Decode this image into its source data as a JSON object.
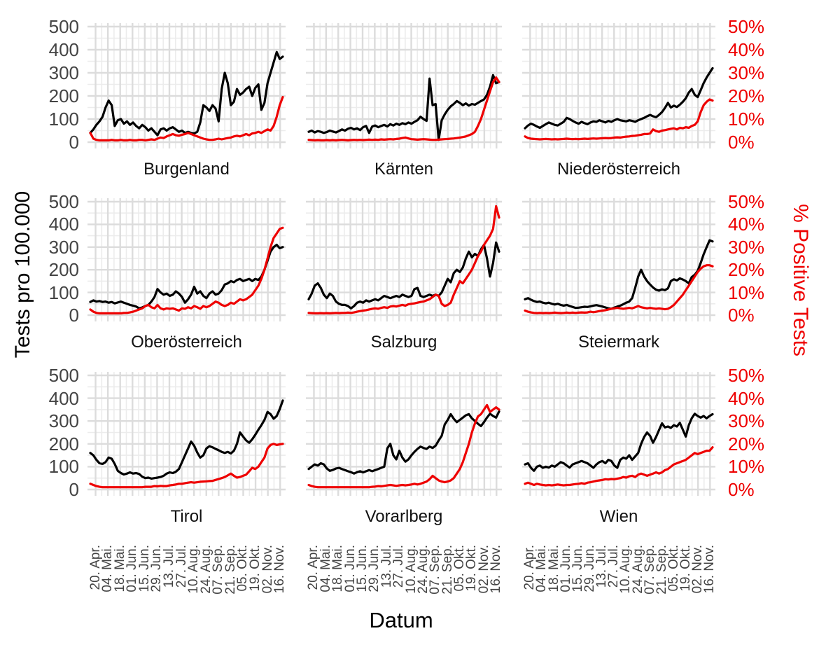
{
  "figure": {
    "y_left_title": "Tests pro 100.000",
    "y_right_title": "% Positive Tests",
    "x_title": "Datum",
    "colors": {
      "tests_line": "#000000",
      "positive_line": "#ee0000",
      "axis_text": "#444444",
      "facet_title_text": "#111111",
      "grid_major": "#dcdcdc",
      "grid_minor": "#ececec",
      "background": "#ffffff"
    }
  },
  "chart_data": {
    "type": "line",
    "title": "",
    "grid": true,
    "x_axis": {
      "title": "Datum",
      "tick_labels": [
        "20. Apr.",
        "04. Mai.",
        "18. Mai.",
        "01. Jun.",
        "15. Jun.",
        "29. Jun.",
        "13. Jul.",
        "27. Jul.",
        "10. Aug.",
        "24. Aug.",
        "07. Sep.",
        "21. Sep.",
        "05. Okt.",
        "19. Okt.",
        "02. Nov.",
        "16. Nov."
      ],
      "tick_interval_days": 14,
      "total_days": 219,
      "first_tick_day": 6
    },
    "y_left": {
      "title": "Tests pro 100.000",
      "ticks": [
        0,
        100,
        200,
        300,
        400,
        500
      ],
      "range": [
        0,
        500
      ]
    },
    "y_right": {
      "title": "% Positive Tests",
      "tick_labels": [
        "0%",
        "10%",
        "20%",
        "30%",
        "40%",
        "50%"
      ],
      "range_pct": [
        0,
        50
      ]
    },
    "series_legend": [
      {
        "name": "Tests pro 100.000",
        "color": "#000000",
        "axis": "left"
      },
      {
        "name": "% Positive Tests",
        "color": "#ee0000",
        "axis": "right"
      }
    ],
    "facets": [
      {
        "name": "Burgenland",
        "tests_per_100k": [
          40,
          55,
          75,
          90,
          110,
          150,
          180,
          160,
          70,
          95,
          100,
          80,
          90,
          75,
          85,
          70,
          60,
          75,
          65,
          50,
          60,
          45,
          30,
          55,
          60,
          50,
          60,
          65,
          55,
          45,
          50,
          40,
          45,
          40,
          38,
          45,
          85,
          160,
          150,
          135,
          160,
          145,
          90,
          230,
          300,
          255,
          160,
          175,
          230,
          205,
          215,
          230,
          240,
          200,
          235,
          250,
          140,
          170,
          255,
          300,
          345,
          390,
          360,
          370
        ],
        "positive_pct": [
          4,
          1.5,
          1,
          0.8,
          0.8,
          0.8,
          0.8,
          1,
          0.8,
          0.8,
          1,
          0.8,
          0.8,
          1,
          0.8,
          0.8,
          1,
          1,
          0.8,
          1,
          1.2,
          1,
          1.5,
          2,
          1.8,
          2.5,
          3,
          3.5,
          3,
          2.8,
          3.2,
          3.5,
          4,
          3.5,
          3,
          2.5,
          2,
          1.5,
          1.2,
          1,
          1,
          1.2,
          1.5,
          1.2,
          1.5,
          1.8,
          2,
          2.5,
          2.8,
          2.5,
          3,
          3.5,
          3,
          3.8,
          4,
          4.5,
          4,
          4.8,
          5.5,
          5,
          7,
          11,
          16,
          19.5
        ]
      },
      {
        "name": "Kärnten",
        "tests_per_100k": [
          45,
          50,
          42,
          48,
          45,
          40,
          44,
          50,
          46,
          42,
          48,
          55,
          50,
          58,
          62,
          55,
          60,
          52,
          65,
          70,
          40,
          68,
          72,
          65,
          70,
          75,
          68,
          78,
          72,
          80,
          75,
          82,
          78,
          85,
          80,
          88,
          95,
          110,
          100,
          92,
          275,
          160,
          165,
          10,
          95,
          120,
          140,
          155,
          165,
          178,
          170,
          160,
          168,
          158,
          165,
          162,
          170,
          178,
          185,
          205,
          240,
          290,
          255,
          260
        ],
        "positive_pct": [
          1,
          0.9,
          0.8,
          0.9,
          0.8,
          0.8,
          0.9,
          0.8,
          0.9,
          0.8,
          0.9,
          1,
          0.9,
          0.8,
          0.9,
          1,
          0.9,
          1,
          0.9,
          1,
          1.1,
          1,
          1.1,
          1,
          1.2,
          1.1,
          1.2,
          1.3,
          1.2,
          1.4,
          1.5,
          1.8,
          2,
          1.6,
          1.3,
          1.2,
          1.1,
          1.2,
          1.3,
          1.2,
          1.1,
          1,
          1,
          1.1,
          1.2,
          1.3,
          1.4,
          1.5,
          1.6,
          1.8,
          2,
          2.2,
          2.5,
          3,
          3.5,
          4.5,
          7,
          10,
          14,
          18,
          22,
          26,
          28,
          26
        ]
      },
      {
        "name": "Niederösterreich",
        "tests_per_100k": [
          60,
          72,
          80,
          75,
          68,
          62,
          70,
          78,
          85,
          80,
          75,
          72,
          80,
          88,
          105,
          100,
          92,
          85,
          80,
          88,
          82,
          78,
          85,
          90,
          88,
          95,
          90,
          85,
          92,
          88,
          95,
          100,
          95,
          92,
          90,
          95,
          92,
          88,
          95,
          100,
          105,
          112,
          118,
          112,
          108,
          118,
          130,
          148,
          170,
          150,
          158,
          152,
          162,
          175,
          190,
          215,
          230,
          205,
          195,
          225,
          255,
          280,
          300,
          320
        ],
        "positive_pct": [
          2.5,
          1.8,
          1.5,
          1.4,
          1.3,
          1.2,
          1.3,
          1.4,
          1.3,
          1.2,
          1.3,
          1.2,
          1.3,
          1.4,
          1.5,
          1.4,
          1.3,
          1.4,
          1.3,
          1.4,
          1.5,
          1.4,
          1.5,
          1.6,
          1.5,
          1.6,
          1.7,
          1.8,
          1.7,
          1.8,
          2,
          2.1,
          2,
          2.2,
          2.4,
          2.5,
          2.7,
          2.8,
          3,
          3.2,
          3.5,
          3.5,
          3.8,
          5.5,
          4.8,
          4.5,
          5,
          5.2,
          5.5,
          5.8,
          6,
          5.5,
          6.2,
          6,
          6.5,
          6.2,
          7,
          7.5,
          9,
          13,
          16,
          17.5,
          18.5,
          18
        ]
      },
      {
        "name": "Oberösterreich",
        "tests_per_100k": [
          58,
          65,
          60,
          62,
          58,
          60,
          55,
          58,
          52,
          56,
          60,
          55,
          50,
          45,
          42,
          38,
          30,
          34,
          40,
          45,
          60,
          80,
          115,
          100,
          90,
          95,
          85,
          90,
          105,
          95,
          80,
          55,
          70,
          90,
          125,
          95,
          105,
          85,
          75,
          95,
          105,
          90,
          95,
          110,
          135,
          140,
          150,
          145,
          155,
          160,
          150,
          155,
          160,
          150,
          160,
          155,
          170,
          200,
          240,
          280,
          300,
          310,
          295,
          300
        ],
        "positive_pct": [
          2.5,
          1.5,
          1,
          0.8,
          0.8,
          0.8,
          0.8,
          0.8,
          0.8,
          0.8,
          0.8,
          1,
          1,
          1.2,
          1.5,
          2,
          2.5,
          3,
          4,
          4.5,
          3.5,
          3,
          4.5,
          3,
          2.5,
          3,
          2.8,
          3,
          2.5,
          2,
          3,
          2.8,
          3.5,
          3,
          4,
          3.5,
          2.8,
          4,
          3.5,
          4,
          5,
          6,
          5.5,
          4.5,
          4,
          4.5,
          5.5,
          5,
          6,
          7,
          6.5,
          7,
          8,
          9,
          11,
          13,
          16,
          20,
          25,
          30,
          34,
          36,
          38,
          38.5
        ]
      },
      {
        "name": "Salzburg",
        "tests_per_100k": [
          70,
          95,
          130,
          140,
          120,
          90,
          75,
          95,
          85,
          60,
          50,
          45,
          45,
          40,
          30,
          40,
          55,
          60,
          55,
          65,
          60,
          65,
          70,
          65,
          75,
          85,
          80,
          75,
          80,
          85,
          80,
          90,
          85,
          80,
          85,
          115,
          120,
          85,
          80,
          85,
          90,
          85,
          90,
          85,
          100,
          130,
          160,
          145,
          185,
          200,
          190,
          210,
          250,
          280,
          255,
          270,
          260,
          290,
          310,
          250,
          170,
          230,
          320,
          280
        ],
        "positive_pct": [
          1,
          0.9,
          0.8,
          0.8,
          0.9,
          0.8,
          0.9,
          0.8,
          0.9,
          1,
          0.9,
          1,
          1,
          1.1,
          1,
          1.2,
          1.5,
          1.8,
          2,
          2.2,
          2.5,
          2.8,
          3,
          2.8,
          3.2,
          3.5,
          3.2,
          3.8,
          4,
          3.8,
          4.2,
          4.5,
          4.2,
          4.8,
          5,
          5.2,
          5.5,
          5.8,
          6,
          6.5,
          7,
          8,
          9,
          8.5,
          5,
          4,
          4.5,
          5.5,
          9,
          12,
          15,
          14,
          16,
          18,
          20,
          23,
          26,
          28,
          31,
          33,
          35,
          38,
          48,
          43
        ]
      },
      {
        "name": "Steiermark",
        "tests_per_100k": [
          70,
          75,
          68,
          62,
          58,
          60,
          55,
          52,
          55,
          50,
          47,
          50,
          45,
          42,
          45,
          40,
          36,
          32,
          33,
          35,
          37,
          36,
          39,
          42,
          44,
          41,
          38,
          34,
          30,
          28,
          33,
          38,
          42,
          48,
          55,
          60,
          75,
          120,
          170,
          200,
          170,
          150,
          135,
          122,
          112,
          108,
          114,
          110,
          118,
          150,
          158,
          153,
          162,
          157,
          150,
          140,
          168,
          178,
          195,
          230,
          268,
          300,
          330,
          325
        ],
        "positive_pct": [
          2,
          1.5,
          1.2,
          1,
          0.9,
          1,
          0.9,
          1,
          0.9,
          1,
          1.1,
          1,
          0.9,
          1,
          1.1,
          1,
          1.1,
          1,
          1.1,
          1.2,
          1.1,
          1.2,
          1.5,
          1.3,
          1.5,
          1.8,
          2,
          2.2,
          2.5,
          2.8,
          3,
          3.2,
          3,
          2.8,
          3,
          3.2,
          3,
          3.5,
          4,
          3.5,
          3.2,
          3,
          3.2,
          3,
          2.8,
          3,
          2.8,
          2.6,
          2.8,
          3.5,
          4.5,
          6,
          7.5,
          9,
          11,
          13,
          15,
          17,
          19,
          20.5,
          21.5,
          22,
          22,
          21.5
        ]
      },
      {
        "name": "Tirol",
        "tests_per_100k": [
          160,
          150,
          130,
          115,
          112,
          120,
          140,
          135,
          112,
          82,
          72,
          66,
          70,
          75,
          70,
          72,
          68,
          56,
          50,
          52,
          48,
          50,
          52,
          55,
          60,
          70,
          75,
          72,
          78,
          90,
          120,
          150,
          180,
          210,
          192,
          162,
          140,
          150,
          180,
          190,
          185,
          178,
          172,
          165,
          160,
          165,
          158,
          170,
          200,
          250,
          232,
          215,
          205,
          220,
          240,
          262,
          282,
          305,
          340,
          330,
          310,
          322,
          352,
          390
        ],
        "positive_pct": [
          2.5,
          2,
          1.5,
          1.2,
          1,
          1,
          1,
          1,
          1,
          1,
          1,
          1,
          1,
          1,
          1,
          1,
          1,
          1,
          1.2,
          1.2,
          1.2,
          1.5,
          1.4,
          1.6,
          1.5,
          1.5,
          1.8,
          2,
          2.2,
          2.5,
          2.5,
          2.8,
          3,
          3.2,
          3,
          3.2,
          3.4,
          3.5,
          3.6,
          3.7,
          3.8,
          4.2,
          4.6,
          5,
          5.5,
          6.2,
          7,
          6,
          5.2,
          5.5,
          6,
          6.5,
          8,
          9.5,
          9,
          10,
          12,
          14,
          18,
          19.5,
          20,
          19.5,
          19.8,
          20
        ]
      },
      {
        "name": "Vorarlberg",
        "tests_per_100k": [
          90,
          100,
          110,
          105,
          115,
          110,
          92,
          82,
          86,
          92,
          95,
          90,
          85,
          80,
          76,
          70,
          76,
          80,
          75,
          80,
          85,
          80,
          85,
          90,
          95,
          100,
          180,
          200,
          150,
          132,
          170,
          140,
          122,
          132,
          150,
          165,
          178,
          188,
          182,
          178,
          188,
          182,
          192,
          215,
          235,
          285,
          305,
          330,
          310,
          295,
          305,
          315,
          325,
          330,
          312,
          300,
          288,
          278,
          295,
          315,
          332,
          322,
          315,
          342
        ],
        "positive_pct": [
          2,
          1.5,
          1.2,
          1,
          1,
          1,
          1,
          1,
          1,
          1,
          1,
          1,
          1,
          1,
          1,
          1,
          1,
          1,
          1,
          1,
          1,
          1.2,
          1.3,
          1.5,
          1.4,
          1.6,
          1.8,
          2,
          1.8,
          1.6,
          1.8,
          2,
          1.8,
          2,
          2.2,
          2.5,
          2.2,
          2.5,
          3,
          3.5,
          4.5,
          6,
          5,
          4,
          3.5,
          3.2,
          3.5,
          4,
          5,
          7,
          9,
          12,
          16,
          20,
          25,
          29,
          32,
          33,
          35,
          37,
          34,
          35,
          36,
          35
        ]
      },
      {
        "name": "Wien",
        "tests_per_100k": [
          110,
          115,
          95,
          82,
          100,
          105,
          95,
          100,
          96,
          105,
          100,
          110,
          120,
          115,
          105,
          96,
          110,
          115,
          120,
          125,
          120,
          115,
          105,
          95,
          110,
          120,
          125,
          115,
          130,
          125,
          105,
          95,
          130,
          140,
          135,
          150,
          130,
          145,
          160,
          200,
          230,
          250,
          235,
          205,
          230,
          260,
          290,
          272,
          276,
          270,
          282,
          276,
          292,
          262,
          232,
          282,
          312,
          332,
          322,
          315,
          322,
          312,
          322,
          330
        ],
        "positive_pct": [
          2.5,
          3,
          2.5,
          2,
          2.5,
          2.2,
          2,
          1.8,
          2,
          1.8,
          2,
          2.2,
          2,
          1.8,
          2,
          2,
          2.2,
          2.4,
          2.5,
          2.8,
          2.5,
          3,
          3.2,
          3.5,
          3.8,
          4,
          4.2,
          4.5,
          4.4,
          4.6,
          4.5,
          4.8,
          5,
          5.5,
          5.2,
          5.8,
          6,
          5.5,
          6.5,
          7,
          6.5,
          6,
          6.5,
          7,
          7.5,
          7,
          7.5,
          8.5,
          9,
          10,
          11,
          11.5,
          12,
          12.5,
          13,
          14,
          15,
          16,
          15.5,
          16,
          16.5,
          17,
          17,
          18.5
        ]
      }
    ]
  }
}
